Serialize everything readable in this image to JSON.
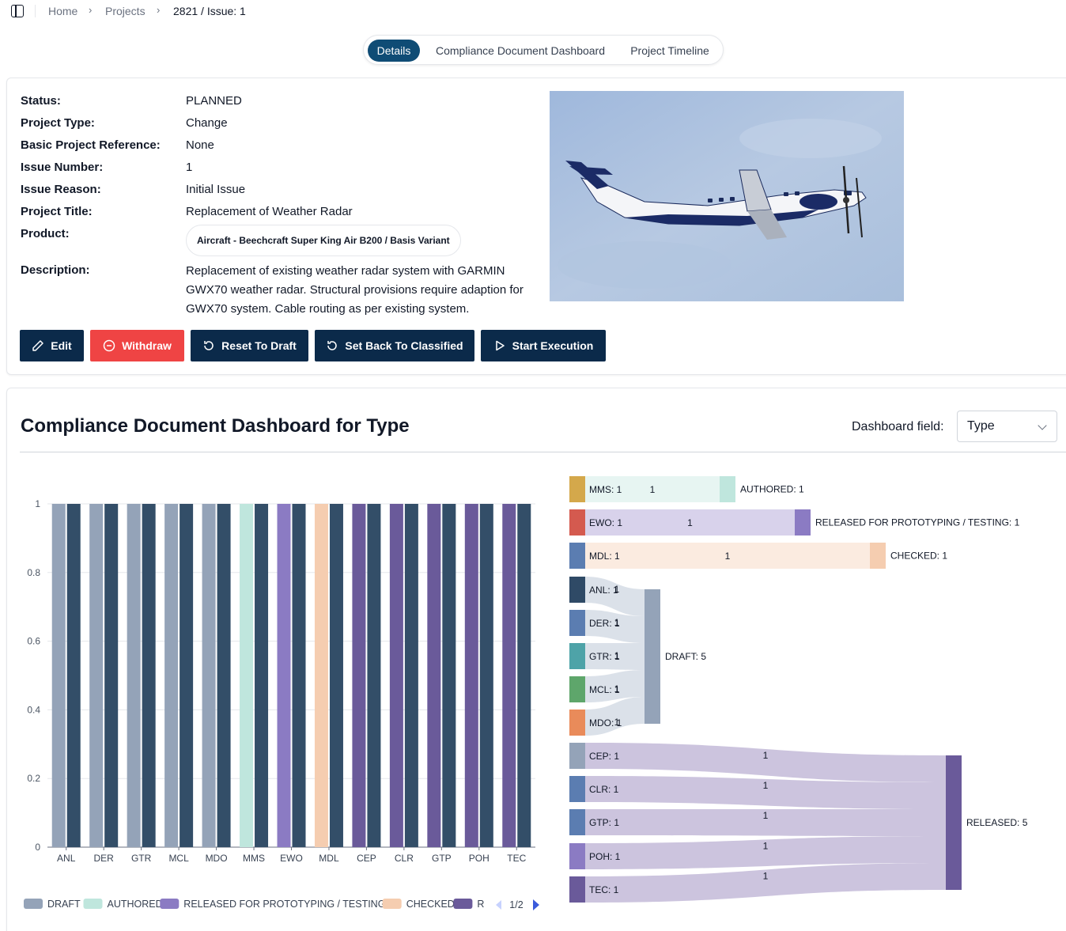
{
  "breadcrumb": {
    "home": "Home",
    "projects": "Projects",
    "current": "2821 / Issue: 1"
  },
  "tabs": [
    {
      "label": "Details",
      "active": true
    },
    {
      "label": "Compliance Document Dashboard",
      "active": false
    },
    {
      "label": "Project Timeline",
      "active": false
    }
  ],
  "details": {
    "status_label": "Status:",
    "status": "PLANNED",
    "type_label": "Project Type:",
    "type": "Change",
    "basic_ref_label": "Basic Project Reference:",
    "basic_ref": "None",
    "issue_number_label": "Issue Number:",
    "issue_number": "1",
    "issue_reason_label": "Issue Reason:",
    "issue_reason": "Initial Issue",
    "title_label": "Project Title:",
    "title": "Replacement of Weather Radar",
    "product_label": "Product:",
    "product": "Aircraft - Beechcraft Super King Air B200 / Basis Variant",
    "description_label": "Description:",
    "description": "Replacement of existing weather radar system with GARMIN GWX70 weather radar. Structural provisions require adaption for GWX70 system. Cable routing as per existing system."
  },
  "actions": {
    "edit": "Edit",
    "withdraw": "Withdraw",
    "reset": "Reset To Draft",
    "set_back": "Set Back To Classified",
    "start": "Start Execution"
  },
  "dashboard": {
    "title": "Compliance Document Dashboard for Type",
    "field_label": "Dashboard field:",
    "field_value": "Type"
  },
  "colors": {
    "draft": "#94a3b8",
    "authored": "#bfe6dd",
    "released_proto": "#8b7bc3",
    "checked": "#f5cdb0",
    "released": "#6a5a9a",
    "dark_bar": "#334e68",
    "brand_button": "#0b2a4a",
    "withdraw_button": "#ef4444",
    "active_tab": "#0f4c75"
  },
  "chart_data": [
    {
      "type": "bar",
      "categories": [
        "ANL",
        "DER",
        "GTR",
        "MCL",
        "MDO",
        "MMS",
        "EWO",
        "MDL",
        "CEP",
        "CLR",
        "GTP",
        "POH",
        "TEC"
      ],
      "series": [
        {
          "name": "status",
          "values": [
            1,
            1,
            1,
            1,
            1,
            1,
            1,
            1,
            1,
            1,
            1,
            1,
            1
          ],
          "status_of_category": [
            "DRAFT",
            "DRAFT",
            "DRAFT",
            "DRAFT",
            "DRAFT",
            "AUTHORED",
            "RELEASED FOR PROTOTYPING / TESTING",
            "CHECKED",
            "RELEASED",
            "RELEASED",
            "RELEASED",
            "RELEASED",
            "RELEASED"
          ]
        },
        {
          "name": "type",
          "values": [
            1,
            1,
            1,
            1,
            1,
            1,
            1,
            1,
            1,
            1,
            1,
            1,
            1
          ]
        }
      ],
      "yticks": [
        "0",
        "0.2",
        "0.4",
        "0.6",
        "0.8",
        "1"
      ],
      "ylim": [
        0,
        1
      ],
      "legend": [
        "DRAFT",
        "AUTHORED",
        "RELEASED FOR PROTOTYPING / TESTING",
        "CHECKED",
        "R"
      ],
      "legend_page": "1/2",
      "legend_position": "bottom"
    },
    {
      "type": "sankey",
      "sources": [
        {
          "label": "MMS: 1",
          "color": "#d4a84b"
        },
        {
          "label": "EWO: 1",
          "color": "#d45a4f"
        },
        {
          "label": "MDL: 1",
          "color": "#5b7db1"
        },
        {
          "label": "ANL: 1",
          "color": "#2f4a66"
        },
        {
          "label": "DER: 1",
          "color": "#5b7db1"
        },
        {
          "label": "GTR: 1",
          "color": "#4ea3a8"
        },
        {
          "label": "MCL: 1",
          "color": "#5ea66b"
        },
        {
          "label": "MDO: 1",
          "color": "#e98b5a"
        },
        {
          "label": "CEP: 1",
          "color": "#94a3b8"
        },
        {
          "label": "CLR: 1",
          "color": "#5b7db1"
        },
        {
          "label": "GTP: 1",
          "color": "#5b7db1"
        },
        {
          "label": "POH: 1",
          "color": "#8b7bc3"
        },
        {
          "label": "TEC: 1",
          "color": "#6a5a9a"
        }
      ],
      "targets": [
        {
          "label": "AUTHORED: 1",
          "color": "#bfe6dd",
          "link_color": "#e6f4f1"
        },
        {
          "label": "RELEASED FOR PROTOTYPING / TESTING: 1",
          "color": "#8b7bc3",
          "link_color": "#d6d0ea"
        },
        {
          "label": "CHECKED: 1",
          "color": "#f5cdb0",
          "link_color": "#fbeade"
        },
        {
          "label": "DRAFT: 5",
          "color": "#94a3b8",
          "link_color": "#d9dfe8"
        },
        {
          "label": "RELEASED: 5",
          "color": "#6a5a9a",
          "link_color": "#c9c1dc"
        }
      ],
      "links": [
        {
          "source": 0,
          "target": 0,
          "value": 1,
          "label": "1"
        },
        {
          "source": 1,
          "target": 1,
          "value": 1,
          "label": "1"
        },
        {
          "source": 2,
          "target": 2,
          "value": 1,
          "label": "1"
        },
        {
          "source": 3,
          "target": 3,
          "value": 1,
          "label": "1"
        },
        {
          "source": 4,
          "target": 3,
          "value": 1,
          "label": "1"
        },
        {
          "source": 5,
          "target": 3,
          "value": 1,
          "label": "1"
        },
        {
          "source": 6,
          "target": 3,
          "value": 1,
          "label": "1"
        },
        {
          "source": 7,
          "target": 3,
          "value": 1,
          "label": "1"
        },
        {
          "source": 8,
          "target": 4,
          "value": 1,
          "label": "1"
        },
        {
          "source": 9,
          "target": 4,
          "value": 1,
          "label": "1"
        },
        {
          "source": 10,
          "target": 4,
          "value": 1,
          "label": "1"
        },
        {
          "source": 11,
          "target": 4,
          "value": 1,
          "label": "1"
        },
        {
          "source": 12,
          "target": 4,
          "value": 1,
          "label": "1"
        }
      ]
    }
  ]
}
